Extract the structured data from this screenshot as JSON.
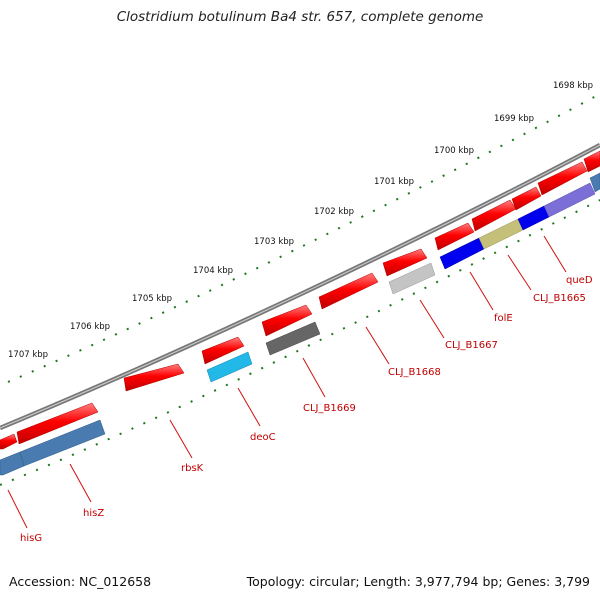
{
  "map": {
    "title": "Clostridium botulinum Ba4 str. 657, complete genome",
    "accession": "Accession: NC_012658",
    "summary": "Topology: circular; Length: 3,977,794 bp; Genes: 3,799"
  },
  "kbp_labels": [
    "1698 kbp",
    "1699 kbp",
    "1700 kbp",
    "1701 kbp",
    "1702 kbp",
    "1703 kbp",
    "1704 kbp",
    "1705 kbp",
    "1706 kbp",
    "1707 kbp"
  ],
  "gene_labels": [
    "queD",
    "CLJ_B1665",
    "folE",
    "CLJ_B1667",
    "CLJ_B1668",
    "CLJ_B1669",
    "deoC",
    "rbsK",
    "hisZ",
    "hisG"
  ],
  "colors": {
    "gene_red": "#ff0000",
    "label_red": "#c00000",
    "tick_green": "#1a7a1a",
    "backbone_gray": "#888888"
  }
}
